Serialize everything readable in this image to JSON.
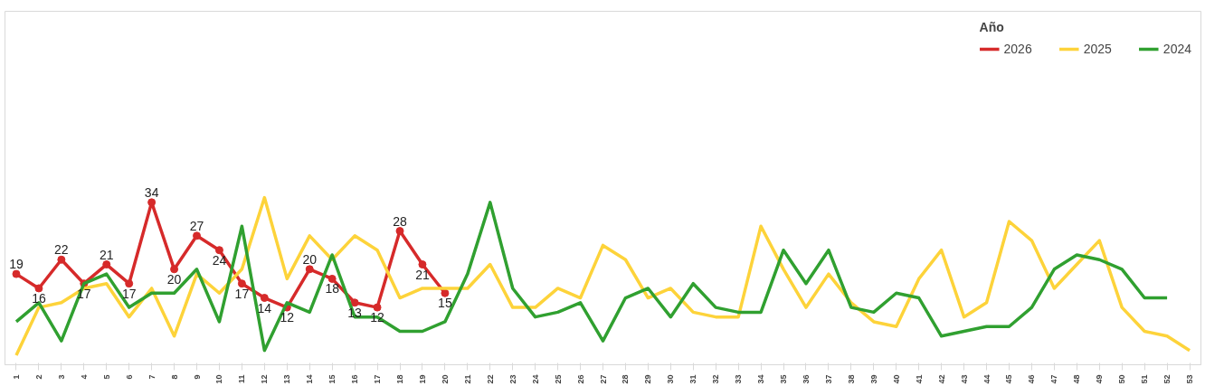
{
  "chart_data": {
    "type": "line",
    "categories": [
      "1",
      "2",
      "3",
      "4",
      "5",
      "6",
      "7",
      "8",
      "9",
      "10",
      "11",
      "12",
      "13",
      "14",
      "15",
      "16",
      "17",
      "18",
      "19",
      "20",
      "21",
      "22",
      "23",
      "24",
      "25",
      "26",
      "27",
      "28",
      "29",
      "30",
      "31",
      "32",
      "33",
      "34",
      "35",
      "36",
      "37",
      "38",
      "39",
      "40",
      "41",
      "42",
      "43",
      "44",
      "45",
      "46",
      "47",
      "48",
      "49",
      "50",
      "51",
      "52",
      "53"
    ],
    "legend_title": "Año",
    "legend": "top right",
    "ylim": [
      0,
      74
    ],
    "tick_labels": "x",
    "grid": false,
    "line_style": "solid",
    "series": [
      {
        "name": "2026",
        "color": "#d62a2a",
        "marker": "circle",
        "values": [
          19,
          16,
          22,
          17,
          21,
          17,
          34,
          20,
          27,
          24,
          17,
          14,
          12,
          20,
          18,
          13,
          12,
          28,
          21,
          15,
          null,
          null,
          null,
          null,
          null,
          null,
          null,
          null,
          null,
          null,
          null,
          null,
          null,
          null,
          null,
          null,
          null,
          null,
          null,
          null,
          null,
          null,
          null,
          null,
          null,
          null,
          null,
          null,
          null,
          null,
          null,
          null,
          null
        ],
        "value_labels": [
          "19",
          "16",
          "22",
          "17",
          "21",
          "17",
          "34",
          "20",
          "27",
          "24",
          "17",
          "14",
          "12",
          "20",
          "18",
          "13",
          "12",
          "28",
          "21",
          "15",
          null,
          null,
          null,
          null,
          null,
          null,
          null,
          null,
          null,
          null,
          null,
          null,
          null,
          null,
          null,
          null,
          null,
          null,
          null,
          null,
          null,
          null,
          null,
          null,
          null,
          null,
          null,
          null,
          null,
          null,
          null,
          null,
          null
        ]
      },
      {
        "name": "2025",
        "color": "#fdd33a",
        "marker": "none",
        "values": [
          2,
          12,
          13,
          16,
          17,
          10,
          16,
          6,
          19,
          15,
          20,
          35,
          18,
          27,
          22,
          27,
          24,
          14,
          16,
          16,
          16,
          21,
          12,
          12,
          16,
          14,
          25,
          22,
          14,
          16,
          11,
          10,
          10,
          29,
          20,
          12,
          19,
          13,
          9,
          8,
          18,
          24,
          10,
          13,
          30,
          26,
          16,
          21,
          26,
          12,
          7,
          6,
          3
        ]
      },
      {
        "name": "2024",
        "color": "#30a030",
        "marker": "none",
        "values": [
          9,
          13,
          5,
          17,
          19,
          12,
          15,
          15,
          20,
          9,
          29,
          3,
          13,
          11,
          23,
          10,
          10,
          7,
          7,
          9,
          19,
          34,
          16,
          10,
          11,
          13,
          5,
          14,
          16,
          10,
          17,
          12,
          11,
          11,
          24,
          17,
          24,
          12,
          11,
          15,
          14,
          6,
          7,
          8,
          8,
          12,
          20,
          23,
          22,
          20,
          14,
          14,
          null
        ]
      }
    ]
  }
}
